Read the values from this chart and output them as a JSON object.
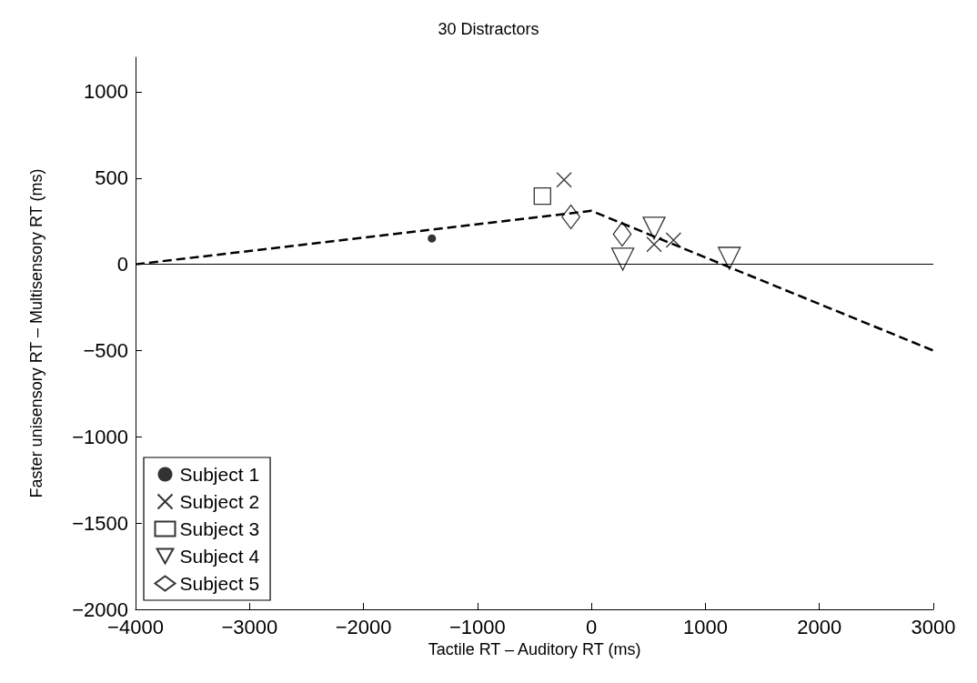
{
  "chart_data": {
    "type": "scatter",
    "title": "30 Distractors",
    "xlabel": "Tactile RT – Auditory RT (ms)",
    "ylabel": "Faster unisensory RT – Multisensory RT (ms)",
    "xlim": [
      -4000,
      3000
    ],
    "xticks": [
      -4000,
      -3000,
      -2000,
      -1000,
      0,
      1000,
      2000,
      3000
    ],
    "ylim": [
      -2000,
      1200
    ],
    "yticks": [
      -2000,
      -1500,
      -1000,
      -500,
      0,
      500,
      1000
    ],
    "grid": false,
    "legend": "bottom left",
    "ref_lines": [
      {
        "axis": "y",
        "value": 0,
        "color": "#000000",
        "line_style": "solid"
      }
    ],
    "series": [
      {
        "name": "Subject 1",
        "color": "#000000",
        "marker": "circle",
        "x": [
          -1400
        ],
        "values": [
          150
        ]
      },
      {
        "name": "Subject 2",
        "color": "#000000",
        "marker": "cross",
        "x": [
          -240,
          550,
          720
        ],
        "values": [
          490,
          115,
          140
        ]
      },
      {
        "name": "Subject 3",
        "color": "#000000",
        "marker": "square",
        "x": [
          -430
        ],
        "values": [
          395
        ]
      },
      {
        "name": "Subject 4",
        "color": "#000000",
        "marker": "triangle",
        "x": [
          550,
          275,
          1210
        ],
        "values": [
          210,
          30,
          35
        ]
      },
      {
        "name": "Subject 5",
        "color": "#000000",
        "marker": "diamond",
        "x": [
          -180,
          270
        ],
        "values": [
          275,
          175
        ]
      },
      {
        "type": "line",
        "color": "#000000",
        "marker": "none",
        "line_style": "dashed",
        "x": [
          -4000,
          0,
          3000
        ],
        "values": [
          0,
          310,
          -500
        ]
      }
    ]
  }
}
